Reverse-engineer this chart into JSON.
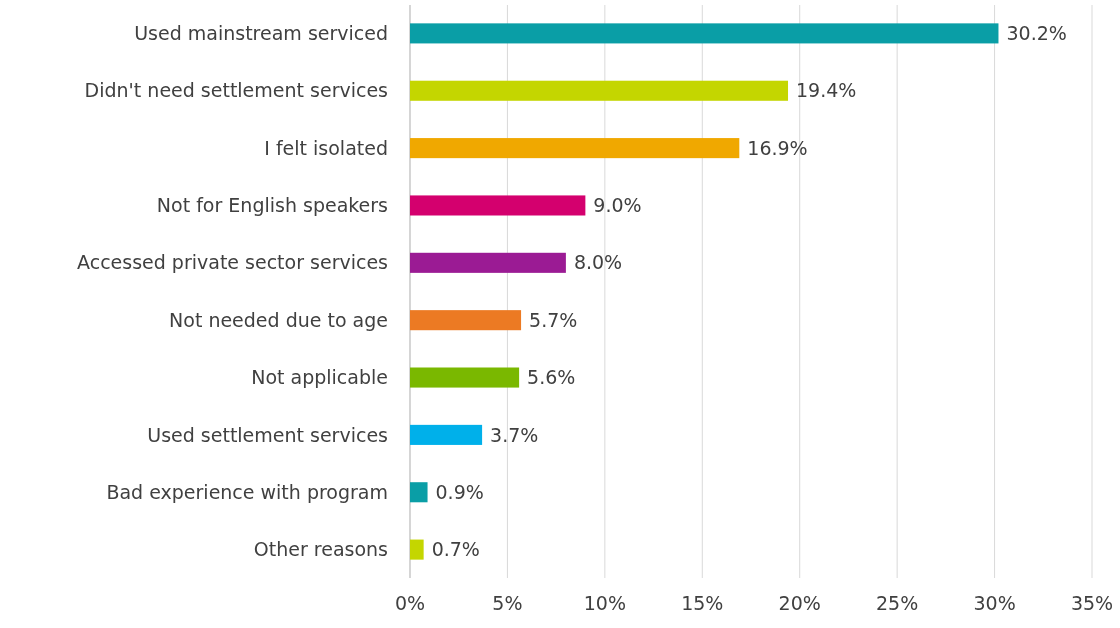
{
  "chart_data": {
    "type": "bar",
    "orientation": "horizontal",
    "categories": [
      "Used mainstream serviced",
      "Didn't need settlement services",
      "I felt isolated",
      "Not for English speakers",
      "Accessed private sector services",
      "Not needed due to age",
      "Not applicable",
      "Used settlement services",
      "Bad experience with program",
      "Other reasons"
    ],
    "values": [
      30.2,
      19.4,
      16.9,
      9.0,
      8.0,
      5.7,
      5.6,
      3.7,
      0.9,
      0.7
    ],
    "value_labels": [
      "30.2%",
      "19.4%",
      "16.9%",
      "9.0%",
      "8.0%",
      "5.7%",
      "5.6%",
      "3.7%",
      "0.9%",
      "0.7%"
    ],
    "colors": [
      "#0a9ea6",
      "#c4d600",
      "#f0a800",
      "#d4006e",
      "#9b1b94",
      "#ec7a23",
      "#7ab800",
      "#00b0ea",
      "#0a9ea6",
      "#c4d600"
    ],
    "xlim": [
      0,
      35
    ],
    "xticks": [
      {
        "value": 0,
        "label": "0%"
      },
      {
        "value": 5,
        "label": "5%"
      },
      {
        "value": 10,
        "label": "10%"
      },
      {
        "value": 15,
        "label": "15%"
      },
      {
        "value": 20,
        "label": "20%"
      },
      {
        "value": 25,
        "label": "25%"
      },
      {
        "value": 30,
        "label": "30%"
      },
      {
        "value": 35,
        "label": "35%"
      }
    ],
    "grid": "x"
  }
}
